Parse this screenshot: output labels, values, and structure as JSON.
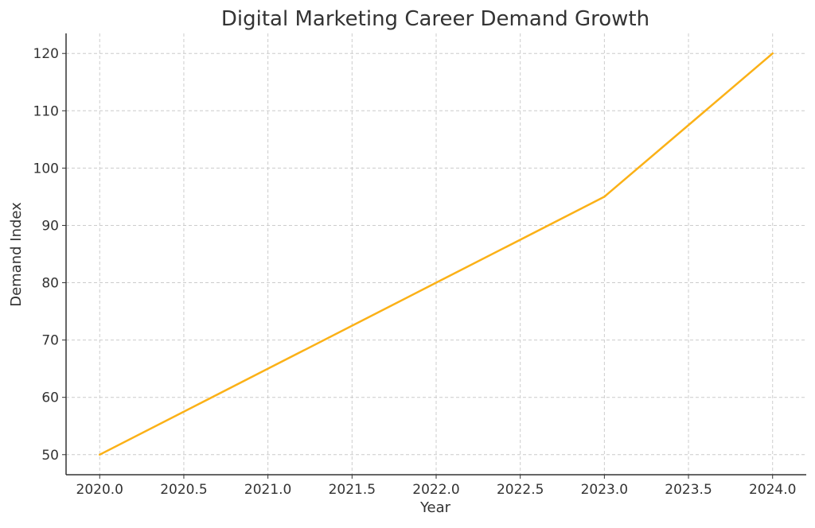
{
  "chart_data": {
    "type": "line",
    "title": "Digital Marketing Career Demand Growth",
    "xlabel": "Year",
    "ylabel": "Demand Index",
    "x": [
      2020,
      2021,
      2022,
      2023,
      2024
    ],
    "series": [
      {
        "values": [
          50,
          65,
          80,
          95,
          120
        ],
        "color": "#FBB117"
      }
    ],
    "xlim": [
      2019.8,
      2024.2
    ],
    "ylim": [
      46.5,
      123.5
    ],
    "x_ticks": [
      "2020.0",
      "2020.5",
      "2021.0",
      "2021.5",
      "2022.0",
      "2022.5",
      "2023.0",
      "2023.5",
      "2024.0"
    ],
    "y_ticks": [
      "50",
      "60",
      "70",
      "80",
      "90",
      "100",
      "110",
      "120"
    ],
    "grid": true,
    "grid_style": "dashed",
    "legend": "none"
  }
}
